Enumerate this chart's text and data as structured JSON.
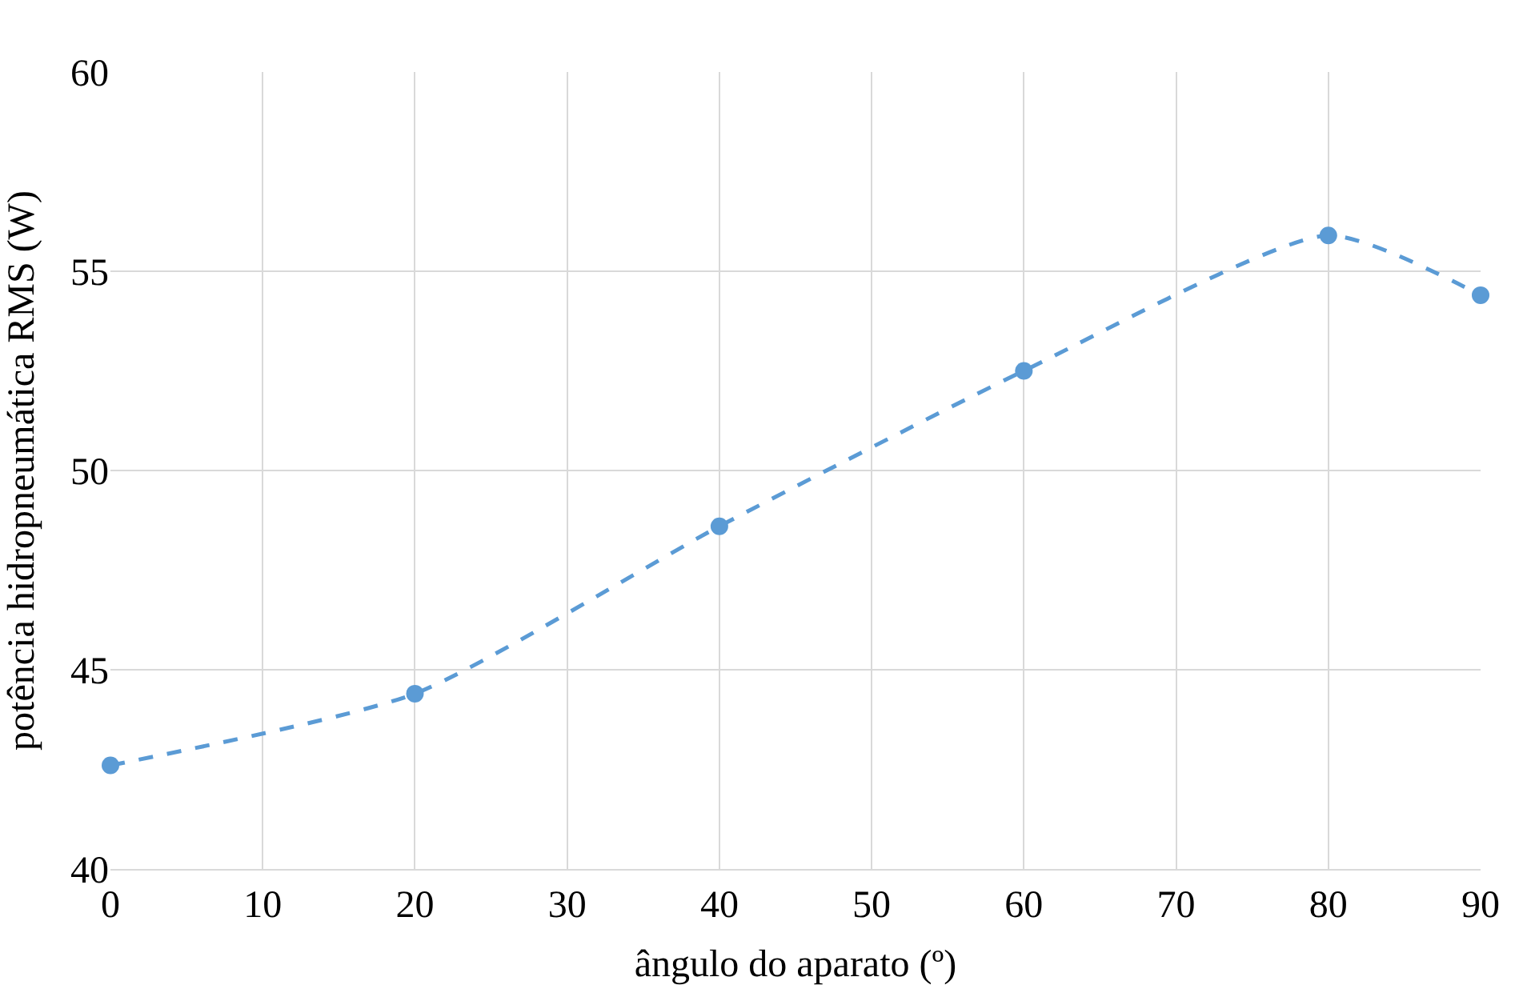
{
  "chart_data": {
    "type": "line",
    "xlabel": "ângulo do aparato (º)",
    "ylabel": "potência hidropneumática RMS (W)",
    "x": [
      0,
      20,
      40,
      60,
      80,
      90
    ],
    "series": [
      {
        "color": "#5b9bd5",
        "values": [
          42.6,
          44.4,
          48.6,
          52.5,
          55.9,
          54.4
        ]
      }
    ],
    "xlim": [
      0,
      90
    ],
    "xticks": [
      0,
      10,
      20,
      30,
      40,
      50,
      60,
      70,
      80,
      90
    ],
    "ylim": [
      40,
      60
    ],
    "yticks": [
      40,
      45,
      50,
      55,
      60
    ],
    "grid": true,
    "legend": false,
    "marker": "circle",
    "line_style": "dashed"
  }
}
